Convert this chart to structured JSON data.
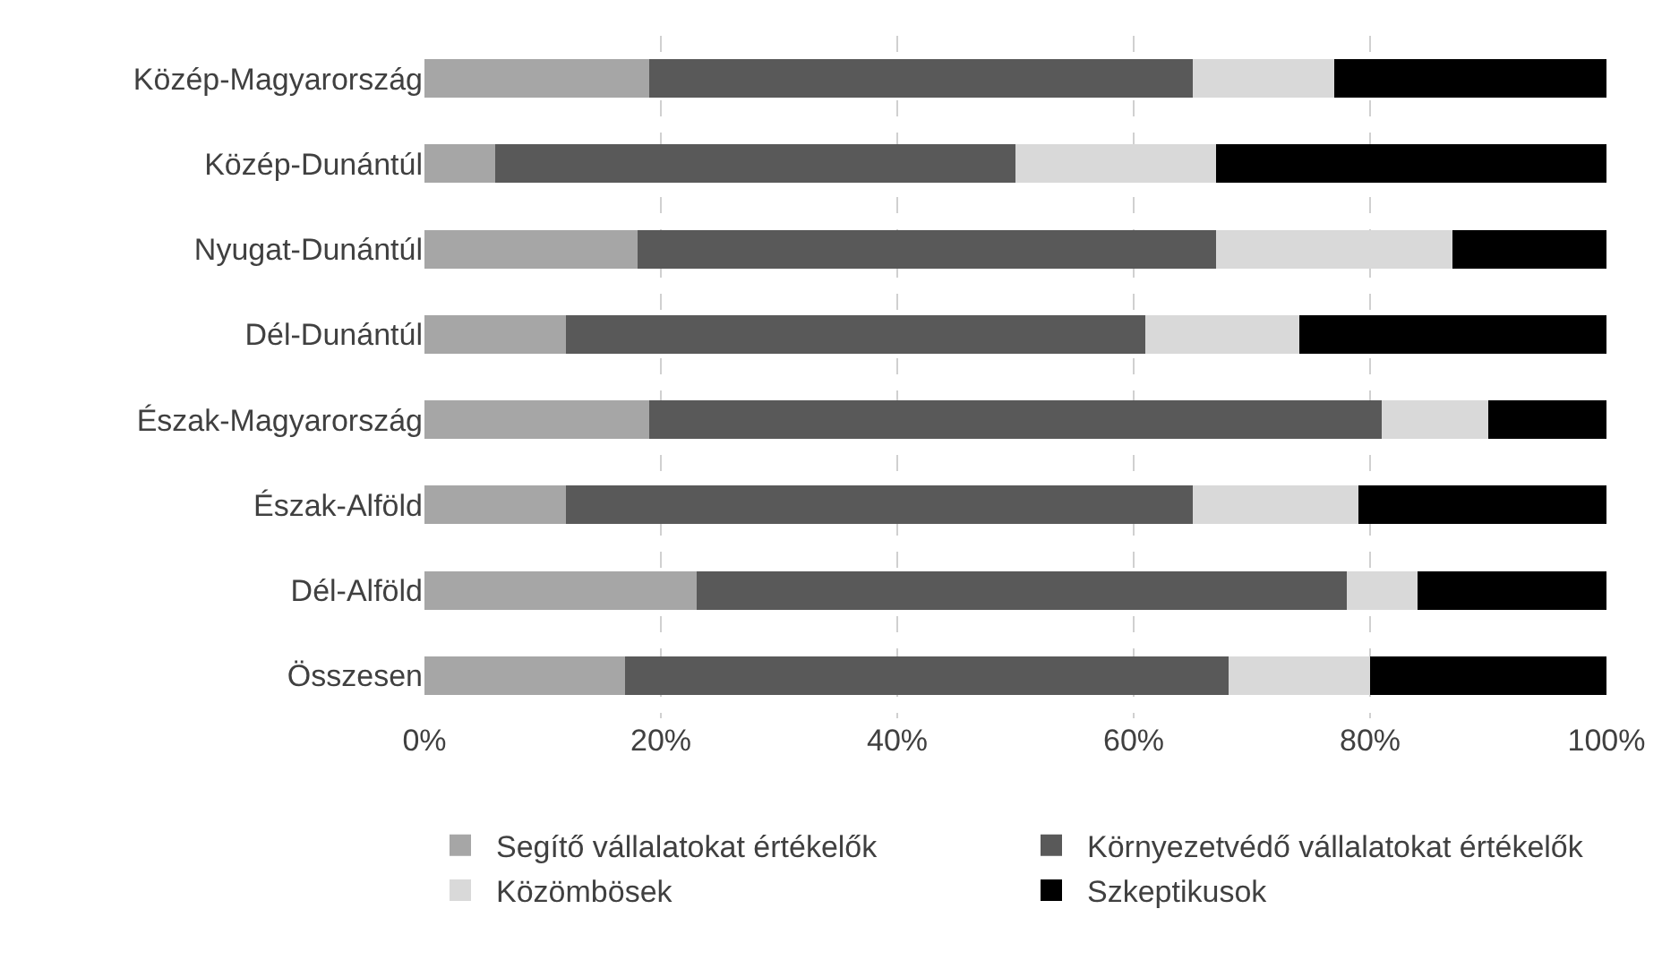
{
  "chart_data": {
    "type": "bar",
    "orientation": "horizontal",
    "stacked": true,
    "categories": [
      "Közép-Magyarország",
      "Közép-Dunántúl",
      "Nyugat-Dunántúl",
      "Dél-Dunántúl",
      "Észak-Magyarország",
      "Észak-Alföld",
      "Dél-Alföld",
      "Összesen"
    ],
    "series": [
      {
        "name": "Segítő vállalatokat értékelők",
        "color": "#a6a6a6",
        "values": [
          19,
          6,
          18,
          12,
          19,
          12,
          23,
          17
        ]
      },
      {
        "name": "Környezetvédő vállalatokat értékelők",
        "color": "#595959",
        "values": [
          46,
          44,
          49,
          49,
          62,
          53,
          55,
          51
        ]
      },
      {
        "name": "Közömbösek",
        "color": "#d9d9d9",
        "values": [
          12,
          17,
          20,
          13,
          9,
          14,
          6,
          12
        ]
      },
      {
        "name": "Szkeptikusok",
        "color": "#000000",
        "values": [
          23,
          33,
          13,
          26,
          10,
          21,
          16,
          20
        ]
      }
    ],
    "xlim": [
      0,
      100
    ],
    "xticks": [
      {
        "value": 0,
        "label": "0%"
      },
      {
        "value": 20,
        "label": "20%"
      },
      {
        "value": 40,
        "label": "40%"
      },
      {
        "value": 60,
        "label": "60%"
      },
      {
        "value": 80,
        "label": "80%"
      },
      {
        "value": 100,
        "label": "100%"
      }
    ],
    "grid": "x",
    "legend": "bottom"
  }
}
